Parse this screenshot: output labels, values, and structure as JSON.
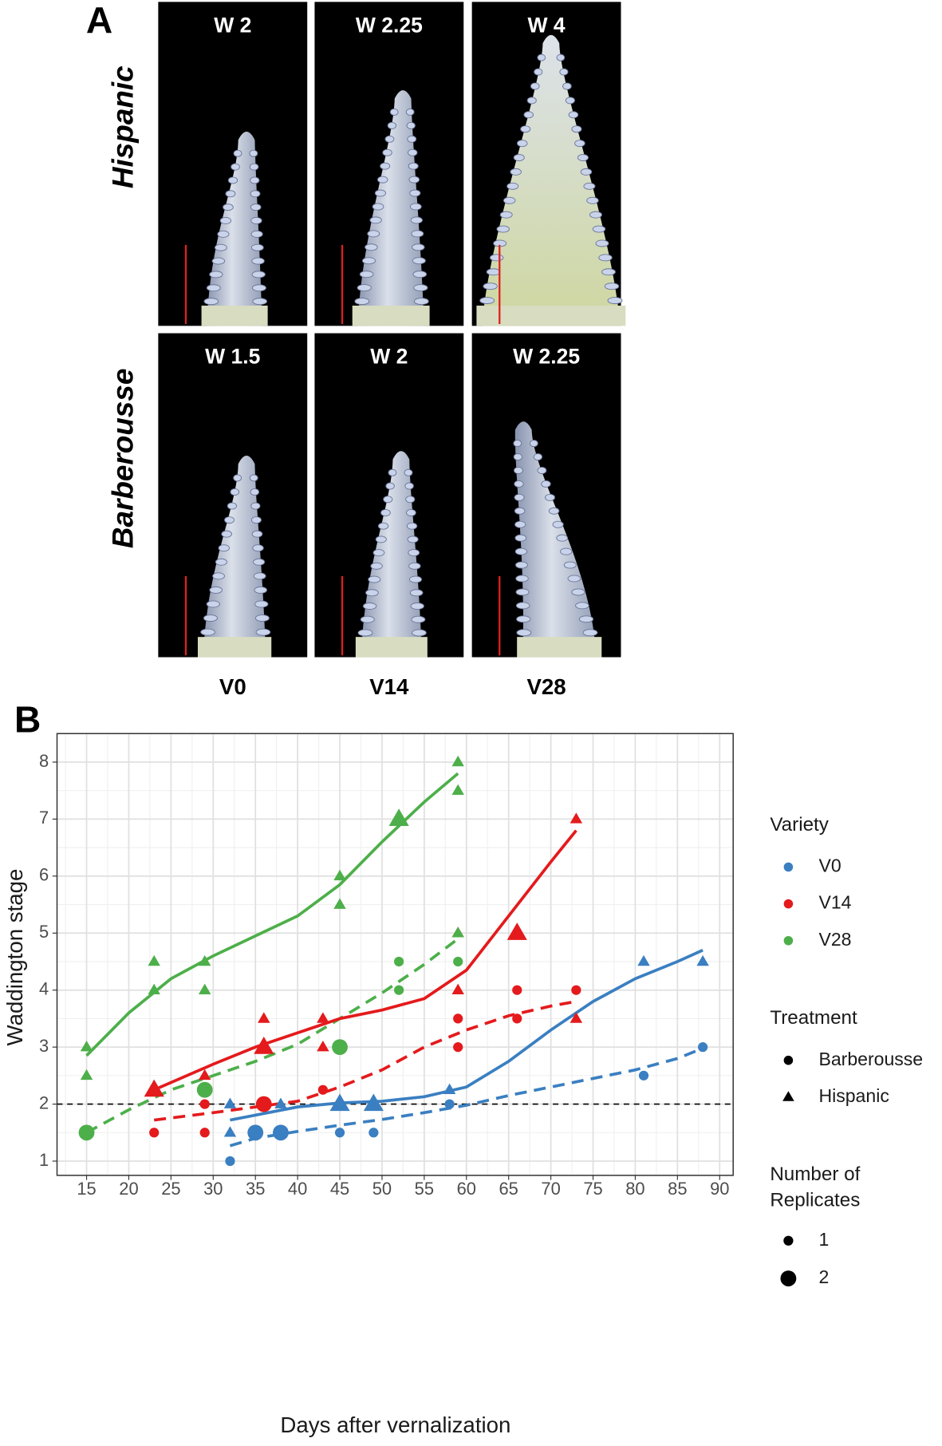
{
  "panel_a": {
    "label": "A",
    "rows": [
      {
        "label": "Hispanic",
        "images": [
          "W 2",
          "W 2.25",
          "W 4"
        ]
      },
      {
        "label": "Barberousse",
        "images": [
          "W 1.5",
          "W 2",
          "W 2.25"
        ]
      }
    ],
    "columns": [
      "V0",
      "V14",
      "V28"
    ]
  },
  "chart_data": {
    "type": "scatter",
    "panel_label": "B",
    "xlabel": "Days after vernalization",
    "ylabel": "Waddington stage",
    "xlim": [
      11.5,
      91.6
    ],
    "ylim": [
      0.75,
      8.5
    ],
    "xticks": [
      15,
      20,
      25,
      30,
      35,
      40,
      45,
      50,
      55,
      60,
      65,
      70,
      75,
      80,
      85,
      90
    ],
    "yticks": [
      1,
      2,
      3,
      4,
      5,
      6,
      7,
      8
    ],
    "xminorticks": [
      12.5,
      17.5,
      22.5,
      27.5,
      32.5,
      37.5,
      42.5,
      47.5,
      52.5,
      57.5,
      62.5,
      67.5,
      72.5,
      77.5,
      82.5,
      87.5
    ],
    "yminorticks": [
      1.5,
      2.5,
      3.5,
      4.5,
      5.5,
      6.5,
      7.5
    ],
    "grid": true,
    "hline": 2,
    "legend": {
      "variety": {
        "title": "Variety",
        "items": [
          {
            "label": "V0",
            "color": "#3a7fc1"
          },
          {
            "label": "V14",
            "color": "#e41a1c"
          },
          {
            "label": "V28",
            "color": "#4daf4a"
          }
        ]
      },
      "treatment": {
        "title": "Treatment",
        "items": [
          {
            "label": "Barberousse",
            "shape": "circle"
          },
          {
            "label": "Hispanic",
            "shape": "triangle"
          }
        ]
      },
      "replicates": {
        "title_lines": [
          "Number of",
          "Replicates"
        ],
        "items": [
          1,
          2
        ]
      }
    },
    "series": [
      {
        "variety": 0,
        "treatment": 0,
        "x": [
          32,
          35,
          38,
          45,
          49,
          58,
          81,
          88
        ],
        "y": [
          1,
          1.5,
          1.5,
          1.5,
          1.5,
          2,
          2.5,
          3
        ],
        "replicates": [
          1,
          2,
          2,
          1,
          1,
          1,
          1,
          1
        ]
      },
      {
        "variety": 0,
        "treatment": 1,
        "x": [
          32,
          32,
          38,
          45,
          49,
          58,
          81,
          88
        ],
        "y": [
          1.5,
          2,
          2,
          2,
          2,
          2.25,
          4.5,
          4.5
        ],
        "replicates": [
          1,
          1,
          1,
          2,
          2,
          1,
          1,
          1
        ]
      },
      {
        "variety": 1,
        "treatment": 0,
        "x": [
          23,
          29,
          29,
          36,
          43,
          59,
          59,
          66,
          66,
          73
        ],
        "y": [
          1.5,
          1.5,
          2,
          2,
          2.25,
          3,
          3.5,
          3.5,
          4,
          4
        ],
        "replicates": [
          1,
          1,
          1,
          2,
          1,
          1,
          1,
          1,
          1,
          1
        ]
      },
      {
        "variety": 1,
        "treatment": 1,
        "x": [
          23,
          29,
          36,
          36,
          43,
          43,
          59,
          59,
          66,
          73,
          73
        ],
        "y": [
          2.25,
          2.5,
          3,
          3.5,
          3,
          3.5,
          4,
          5,
          5,
          7,
          3.5
        ],
        "replicates": [
          2,
          1,
          2,
          1,
          1,
          1,
          1,
          1,
          2,
          1,
          1
        ]
      },
      {
        "variety": 2,
        "treatment": 0,
        "x": [
          15,
          29,
          45,
          52,
          52,
          59
        ],
        "y": [
          1.5,
          2.25,
          3,
          4,
          4.5,
          4.5
        ],
        "replicates": [
          2,
          2,
          2,
          1,
          1,
          1
        ]
      },
      {
        "variety": 2,
        "treatment": 1,
        "x": [
          15,
          15,
          23,
          23,
          29,
          29,
          45,
          45,
          52,
          59,
          59,
          59
        ],
        "y": [
          3,
          2.5,
          4.5,
          4,
          4.5,
          4,
          6,
          5.5,
          7,
          8,
          7.5,
          5
        ],
        "replicates": [
          1,
          1,
          1,
          1,
          1,
          1,
          1,
          1,
          2,
          1,
          1,
          1
        ]
      }
    ],
    "fits": [
      {
        "variety": 2,
        "treatment": 1,
        "dashed": false,
        "x": [
          15,
          20,
          25,
          30,
          35,
          40,
          45,
          50,
          55,
          59
        ],
        "y": [
          2.85,
          3.6,
          4.2,
          4.6,
          4.95,
          5.3,
          5.85,
          6.6,
          7.3,
          7.8
        ]
      },
      {
        "variety": 2,
        "treatment": 0,
        "dashed": true,
        "x": [
          15,
          20,
          25,
          30,
          35,
          40,
          45,
          50,
          55,
          59
        ],
        "y": [
          1.5,
          1.9,
          2.25,
          2.5,
          2.75,
          3.05,
          3.5,
          3.95,
          4.45,
          4.9
        ]
      },
      {
        "variety": 1,
        "treatment": 1,
        "dashed": false,
        "x": [
          23,
          30,
          35,
          40,
          45,
          50,
          55,
          60,
          65,
          70,
          73
        ],
        "y": [
          2.25,
          2.7,
          3,
          3.25,
          3.5,
          3.65,
          3.85,
          4.35,
          5.3,
          6.25,
          6.8
        ]
      },
      {
        "variety": 1,
        "treatment": 0,
        "dashed": true,
        "x": [
          23,
          30,
          35,
          40,
          45,
          50,
          55,
          60,
          65,
          70,
          73
        ],
        "y": [
          1.72,
          1.85,
          1.95,
          2.05,
          2.3,
          2.6,
          3,
          3.3,
          3.55,
          3.72,
          3.8
        ]
      },
      {
        "variety": 0,
        "treatment": 1,
        "dashed": false,
        "x": [
          32,
          40,
          45,
          50,
          55,
          60,
          65,
          70,
          75,
          80,
          85,
          88
        ],
        "y": [
          1.72,
          1.95,
          2.02,
          2.05,
          2.13,
          2.3,
          2.75,
          3.3,
          3.8,
          4.2,
          4.5,
          4.7
        ]
      },
      {
        "variety": 0,
        "treatment": 0,
        "dashed": true,
        "x": [
          32,
          35,
          40,
          45,
          50,
          55,
          60,
          65,
          70,
          75,
          80,
          85,
          88
        ],
        "y": [
          1.27,
          1.4,
          1.52,
          1.63,
          1.73,
          1.85,
          1.98,
          2.15,
          2.3,
          2.45,
          2.6,
          2.8,
          2.98
        ]
      }
    ]
  }
}
